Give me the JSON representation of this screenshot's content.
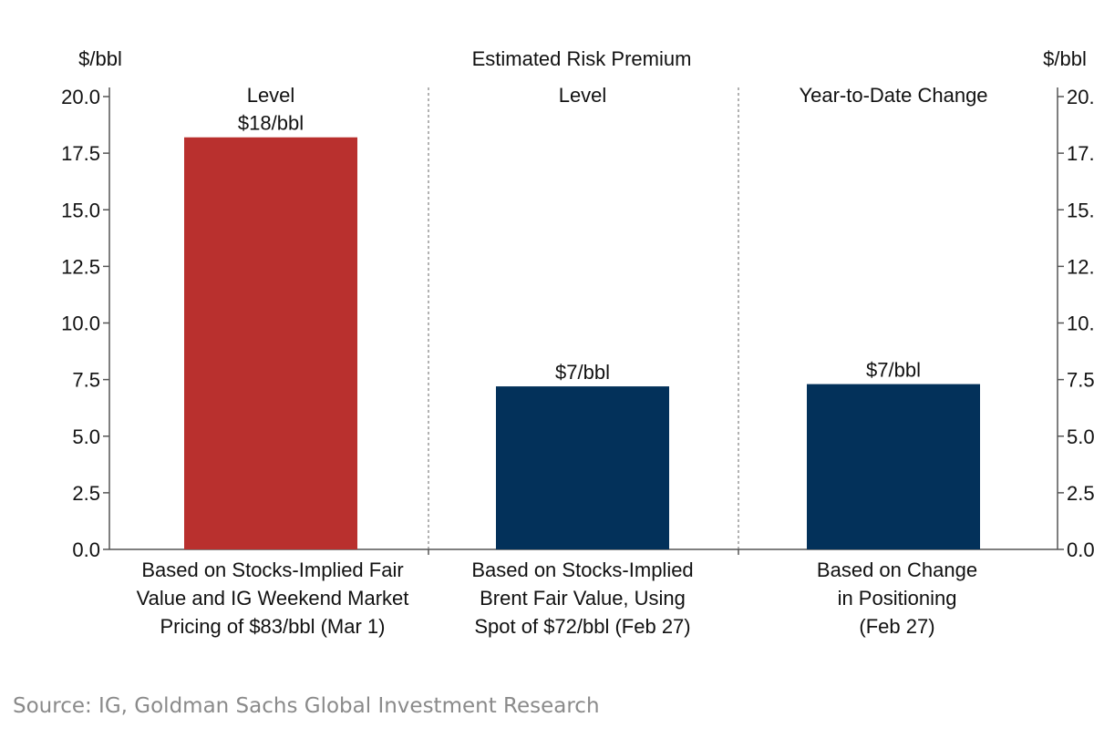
{
  "chart_data": {
    "type": "bar",
    "title": "Estimated Risk Premium",
    "ylabel_left": "$/bbl",
    "ylabel_right": "$/bbl",
    "ylim": [
      0,
      20
    ],
    "yticks": [
      "0.0",
      "2.5",
      "5.0",
      "7.5",
      "10.0",
      "12.5",
      "15.0",
      "17.5",
      "20.0"
    ],
    "grid": false,
    "panel_headers": [
      "Level",
      "Level",
      "Year-to-Date Change"
    ],
    "categories": [
      [
        "Based on Stocks-Implied Fair",
        "Value and IG Weekend Market",
        "Pricing of $83/bbl (Mar 1)"
      ],
      [
        "Based on Stocks-Implied",
        "Brent Fair Value, Using",
        "Spot of $72/bbl (Feb 27)"
      ],
      [
        "Based on Change",
        "in Positioning",
        "(Feb 27)"
      ]
    ],
    "values": [
      18.2,
      7.2,
      7.3
    ],
    "data_labels": [
      "$18/bbl",
      "$7/bbl",
      "$7/bbl"
    ],
    "colors": [
      "#b9302e",
      "#03315a",
      "#03315a"
    ]
  },
  "source": "Source: IG, Goldman Sachs Global Investment Research"
}
